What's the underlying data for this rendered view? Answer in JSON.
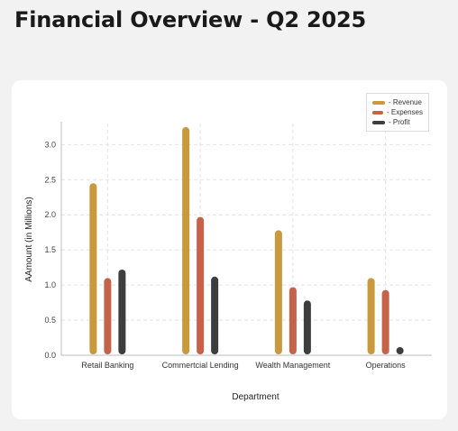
{
  "page": {
    "title": "Financial Overview - Q2 2025"
  },
  "chart_data": {
    "type": "bar",
    "xlabel": "Department",
    "ylabel": "AAmount (in Millions)",
    "categories": [
      "Retail Banking",
      "Commertcial Lending",
      "Wealth Management",
      "Operations"
    ],
    "series": [
      {
        "name": "Revenue",
        "legend_label": "- Revenue",
        "color": "#c8993d",
        "values": [
          2.45,
          3.25,
          1.78,
          1.1
        ]
      },
      {
        "name": "Expenses",
        "legend_label": "- Expenses",
        "color": "#c4634a",
        "values": [
          1.1,
          1.97,
          0.97,
          0.93
        ]
      },
      {
        "name": "Profit",
        "legend_label": "- Profit",
        "color": "#3d3d3d",
        "values": [
          1.22,
          1.12,
          0.78,
          0.07
        ]
      }
    ],
    "ylim": [
      0,
      3.3
    ],
    "yticks": [
      "0.0",
      "0.5",
      "1.0",
      "1.5",
      "2.0",
      "2.5",
      "3.0"
    ],
    "grid": true,
    "legend_position": "top-right"
  }
}
